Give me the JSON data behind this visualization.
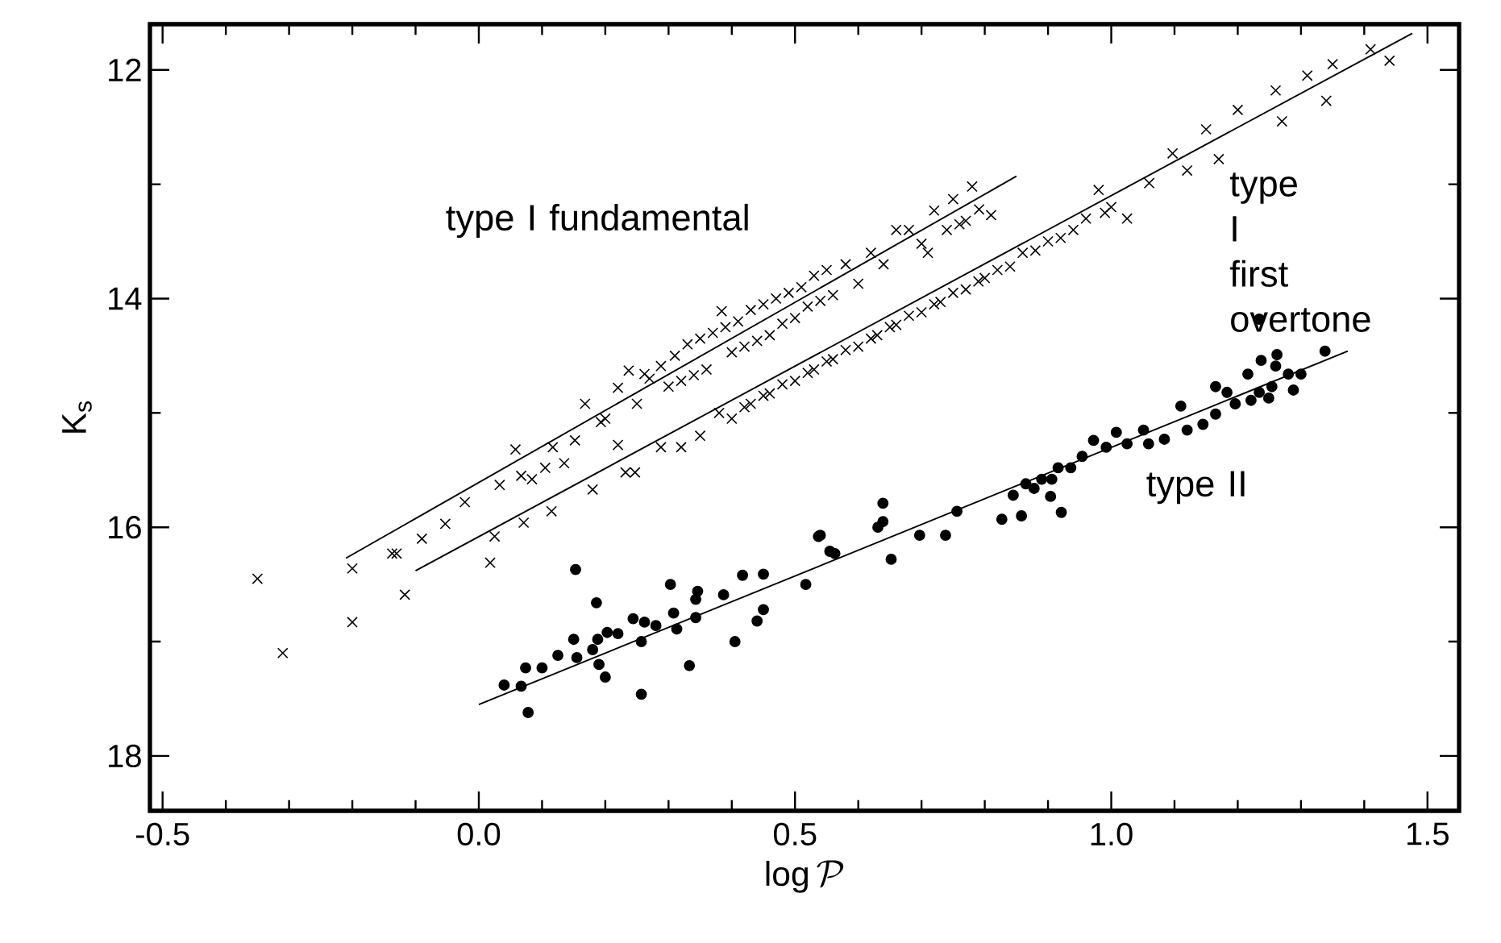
{
  "chart_data": {
    "type": "scatter",
    "xlabel": "\\log\\mathcal{P}",
    "ylabel": "K$_{s}$",
    "xlim": [
      -0.52,
      1.55
    ],
    "ylim": [
      18.48,
      11.6
    ],
    "xticks": [
      -0.5,
      {
        "value": 0,
        "label": "0.0"
      },
      0.5,
      {
        "value": 1,
        "label": "1.0"
      },
      1.5
    ],
    "yticks": [
      12,
      14,
      16,
      18
    ],
    "series": [
      {
        "type": "scatter",
        "marker": "cross",
        "color": "#000000",
        "x": [
          -0.35,
          -0.31,
          -0.2,
          -0.2,
          -0.137,
          -0.13,
          -0.09,
          -0.053,
          -0.022,
          0.033,
          0.058,
          0.067,
          0.084,
          0.105,
          0.117,
          0.135,
          0.152,
          0.168,
          0.193,
          0.2,
          0.22,
          0.237,
          0.25,
          0.262,
          0.27,
          0.288,
          0.3,
          0.31,
          0.32,
          0.33,
          0.34,
          0.35,
          0.36,
          0.37,
          0.384,
          0.39,
          0.4,
          0.41,
          0.42,
          0.43,
          0.44,
          0.45,
          0.46,
          0.47,
          0.48,
          0.49,
          0.5,
          0.51,
          0.52,
          0.53,
          0.54,
          0.55,
          0.56,
          0.58,
          0.6,
          0.62,
          0.64,
          0.66,
          0.68,
          0.7,
          0.71,
          0.72,
          0.74,
          0.75,
          0.76,
          0.77,
          0.78,
          0.791,
          0.81
        ],
        "values": [
          16.45,
          17.1,
          16.36,
          16.83,
          16.23,
          16.23,
          16.1,
          15.97,
          15.78,
          15.63,
          15.32,
          15.55,
          15.58,
          15.48,
          15.3,
          15.44,
          15.24,
          14.92,
          15.08,
          15.05,
          14.78,
          14.63,
          14.92,
          14.66,
          14.7,
          14.59,
          14.77,
          14.5,
          14.72,
          14.4,
          14.67,
          14.35,
          14.62,
          14.3,
          14.11,
          14.25,
          14.47,
          14.2,
          14.42,
          14.1,
          14.37,
          14.05,
          14.32,
          14.0,
          14.22,
          13.95,
          14.17,
          13.9,
          14.07,
          13.8,
          14.02,
          13.75,
          13.97,
          13.7,
          13.87,
          13.6,
          13.7,
          13.4,
          13.4,
          13.52,
          13.6,
          13.23,
          13.4,
          13.13,
          13.35,
          13.32,
          13.02,
          13.22,
          13.27
        ]
      },
      {
        "type": "scatter",
        "marker": "cross",
        "color": "#000000",
        "x": [
          -0.117,
          0.018,
          0.025,
          0.071,
          0.115,
          0.18,
          0.22,
          0.232,
          0.247,
          0.288,
          0.32,
          0.35,
          0.38,
          0.4,
          0.42,
          0.43,
          0.45,
          0.46,
          0.48,
          0.5,
          0.52,
          0.53,
          0.55,
          0.56,
          0.58,
          0.6,
          0.62,
          0.63,
          0.65,
          0.66,
          0.68,
          0.7,
          0.72,
          0.73,
          0.75,
          0.77,
          0.79,
          0.8,
          0.82,
          0.84,
          0.86,
          0.88,
          0.9,
          0.92,
          0.94,
          0.96,
          0.98,
          0.99,
          1.0,
          1.025,
          1.06,
          1.097,
          1.12,
          1.15,
          1.17,
          1.2,
          1.26,
          1.27,
          1.31,
          1.34,
          1.35,
          1.41,
          1.44
        ],
        "values": [
          16.59,
          16.31,
          16.08,
          15.96,
          15.86,
          15.67,
          15.28,
          15.52,
          15.52,
          15.3,
          15.3,
          15.2,
          15.0,
          15.05,
          14.95,
          14.92,
          14.85,
          14.83,
          14.75,
          14.72,
          14.65,
          14.62,
          14.55,
          14.53,
          14.45,
          14.42,
          14.35,
          14.32,
          14.25,
          14.23,
          14.15,
          14.12,
          14.05,
          14.03,
          13.95,
          13.92,
          13.85,
          13.82,
          13.75,
          13.72,
          13.6,
          13.58,
          13.5,
          13.47,
          13.4,
          13.3,
          13.05,
          13.25,
          13.2,
          13.3,
          12.99,
          12.73,
          12.88,
          12.52,
          12.78,
          12.35,
          12.18,
          12.45,
          12.05,
          12.27,
          11.95,
          11.82,
          11.92
        ]
      },
      {
        "type": "scatter",
        "marker": "circle",
        "color": "#000000",
        "x": [
          0.04,
          0.067,
          0.074,
          0.078,
          0.1,
          0.125,
          0.15,
          0.153,
          0.155,
          0.18,
          0.186,
          0.188,
          0.19,
          0.2,
          0.203,
          0.22,
          0.244,
          0.257,
          0.257,
          0.262,
          0.28,
          0.303,
          0.308,
          0.313,
          0.333,
          0.343,
          0.343,
          0.346,
          0.387,
          0.405,
          0.417,
          0.44,
          0.45,
          0.45,
          0.517,
          0.537,
          0.54,
          0.555,
          0.563,
          0.631,
          0.639,
          0.639,
          0.652,
          0.697,
          0.738,
          0.756,
          0.827,
          0.845,
          0.858,
          0.865,
          0.878,
          0.89,
          0.904,
          0.906,
          0.916,
          0.921,
          0.936,
          0.954,
          0.972,
          0.992,
          1.008,
          1.025,
          1.051,
          1.059,
          1.084,
          1.11,
          1.12,
          1.145,
          1.165,
          1.165,
          1.183,
          1.196,
          1.216,
          1.221,
          1.234,
          1.234,
          1.237,
          1.249,
          1.254,
          1.26,
          1.262,
          1.28,
          1.288,
          1.3,
          1.338
        ],
        "values": [
          17.38,
          17.39,
          17.23,
          17.62,
          17.23,
          17.12,
          16.98,
          16.37,
          17.14,
          17.07,
          16.66,
          16.98,
          17.2,
          17.31,
          16.92,
          16.93,
          16.8,
          17.0,
          17.46,
          16.83,
          16.86,
          16.5,
          16.75,
          16.89,
          17.21,
          16.63,
          16.79,
          16.56,
          16.59,
          17.0,
          16.42,
          16.82,
          16.41,
          16.72,
          16.5,
          16.08,
          16.07,
          16.21,
          16.23,
          16.0,
          15.95,
          15.79,
          16.28,
          16.07,
          16.07,
          15.86,
          15.93,
          15.72,
          15.9,
          15.62,
          15.66,
          15.58,
          15.73,
          15.58,
          15.48,
          15.87,
          15.48,
          15.38,
          15.24,
          15.3,
          15.17,
          15.27,
          15.15,
          15.27,
          15.23,
          14.94,
          15.15,
          15.1,
          14.77,
          15.01,
          14.82,
          14.92,
          14.66,
          14.89,
          14.18,
          14.82,
          14.54,
          14.87,
          14.77,
          14.59,
          14.49,
          14.66,
          14.8,
          14.66,
          14.46
        ]
      },
      {
        "type": "line",
        "color": "#000000",
        "x": [
          -0.21,
          0.85
        ],
        "values": [
          16.27,
          12.93
        ]
      },
      {
        "type": "line",
        "color": "#000000",
        "x": [
          -0.1,
          1.476
        ],
        "values": [
          16.38,
          11.68
        ]
      },
      {
        "type": "line",
        "color": "#000000",
        "x": [
          0.0,
          1.374
        ],
        "values": [
          17.55,
          14.46
        ]
      }
    ],
    "annotations": [
      "type I fundamental",
      "type I first overtone",
      "type II"
    ]
  }
}
